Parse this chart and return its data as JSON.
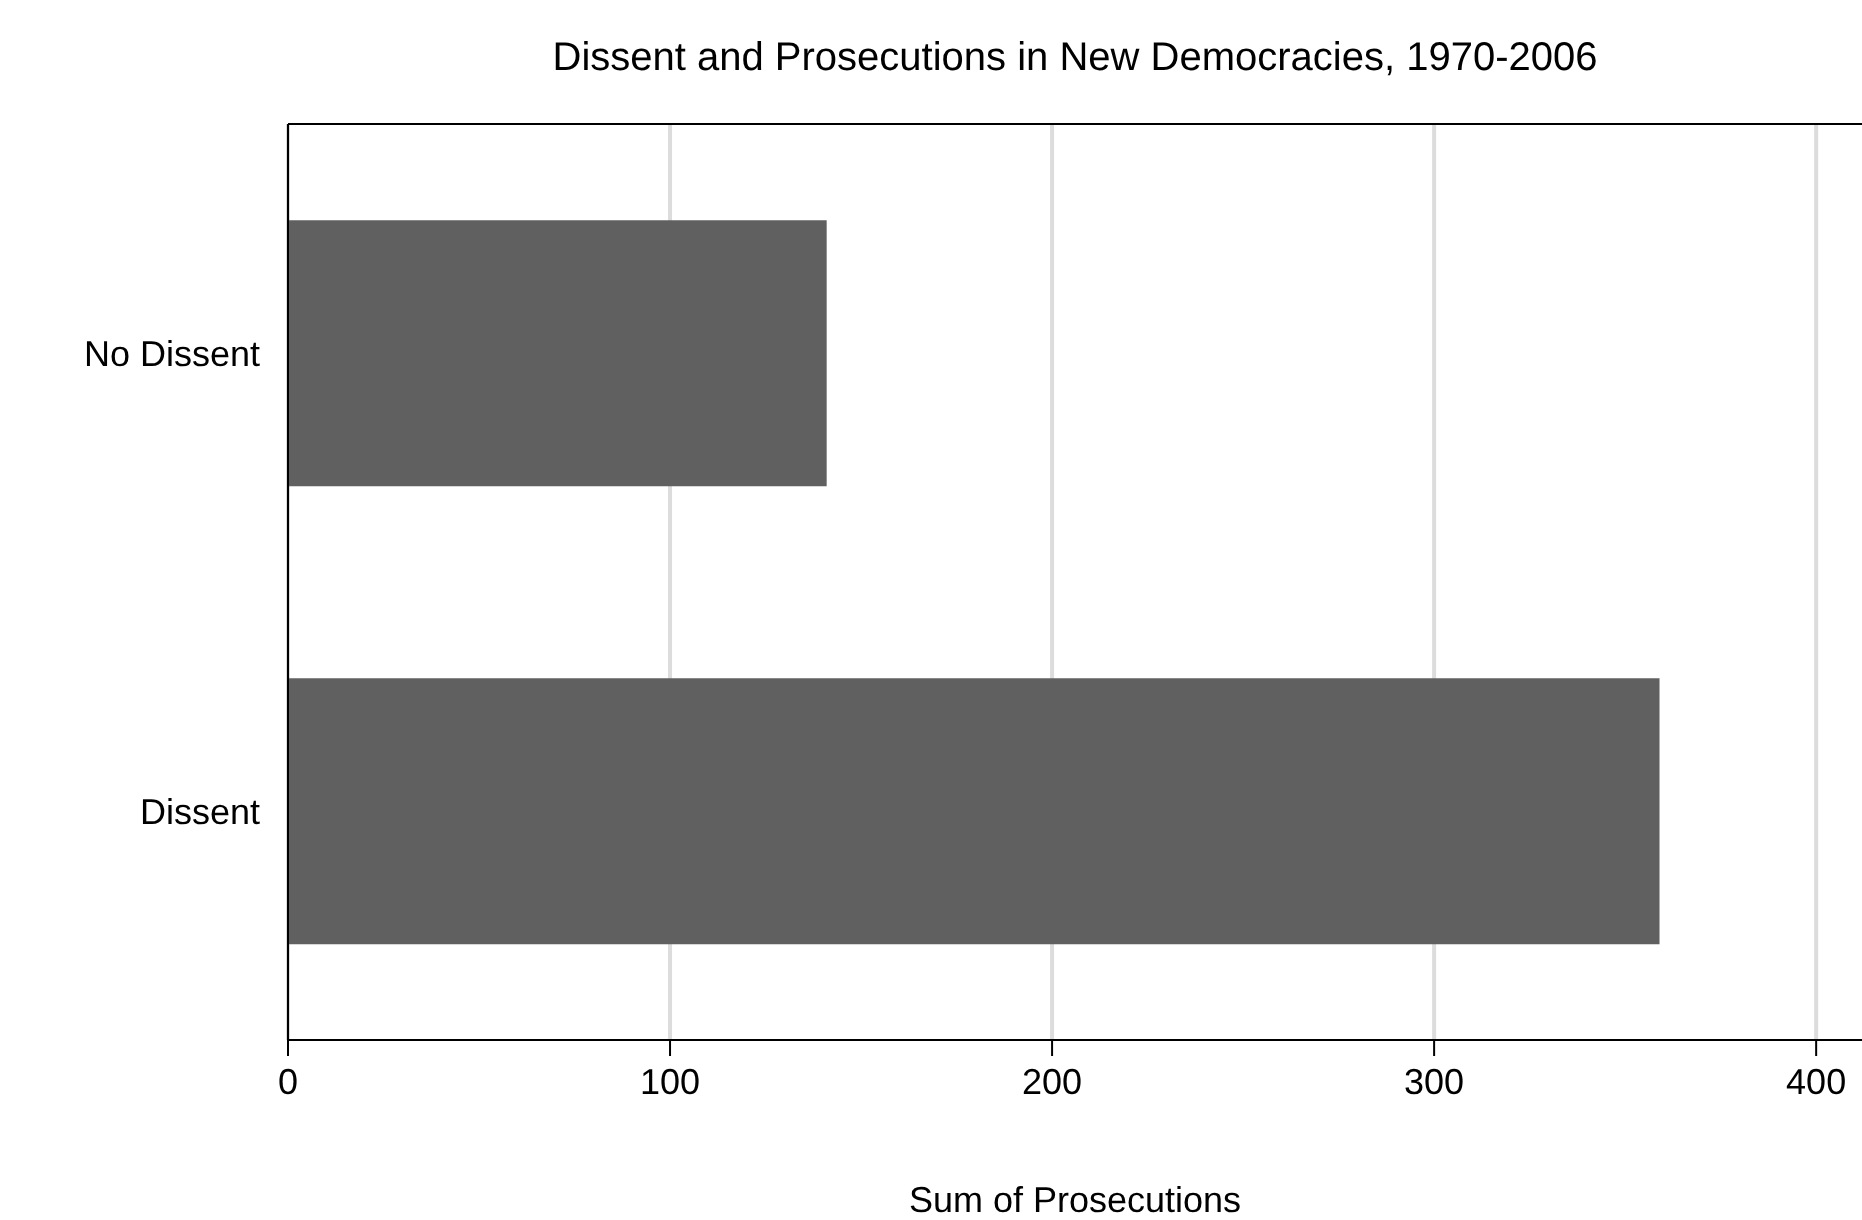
{
  "chart_data": {
    "type": "bar",
    "orientation": "horizontal",
    "title": "Dissent and Prosecutions in New Democracies, 1970-2006",
    "xlabel": "Sum of Prosecutions",
    "categories": [
      "No Dissent",
      "Dissent"
    ],
    "values": [
      141,
      359
    ],
    "color": "#606060",
    "xlim": [
      0,
      412
    ],
    "xticks": [
      0,
      100,
      200,
      300,
      400
    ],
    "grid": "x",
    "legend": false
  }
}
